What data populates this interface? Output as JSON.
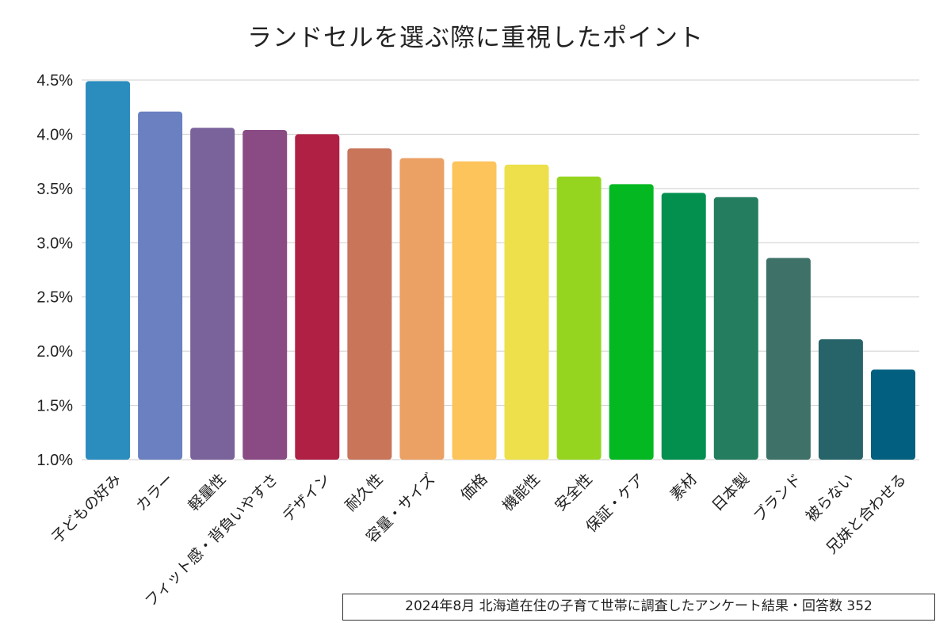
{
  "chart_data": {
    "type": "bar",
    "title": "ランドセルを選ぶ際に重視したポイント",
    "xlabel": "",
    "ylabel": "",
    "ylim": [
      1.0,
      4.5
    ],
    "yticks": [
      "1.0%",
      "1.5%",
      "2.0%",
      "2.5%",
      "3.0%",
      "3.5%",
      "4.0%",
      "4.5%"
    ],
    "ytick_values": [
      1.0,
      1.5,
      2.0,
      2.5,
      3.0,
      3.5,
      4.0,
      4.5
    ],
    "grid": true,
    "legend": "none",
    "categories": [
      "子どもの好み",
      "カラー",
      "軽量性",
      "フィット感・背負いやすさ",
      "デザイン",
      "耐久性",
      "容量・サイズ",
      "価格",
      "機能性",
      "安全性",
      "保証・ケア",
      "素材",
      "日本製",
      "ブランド",
      "被らない",
      "兄妹と合わせる"
    ],
    "values": [
      4.49,
      4.21,
      4.06,
      4.04,
      4.0,
      3.87,
      3.78,
      3.75,
      3.72,
      3.61,
      3.54,
      3.46,
      3.42,
      2.86,
      2.11,
      1.83
    ],
    "colors": [
      "#2b8cbe",
      "#6a80c0",
      "#7a629b",
      "#8a4b85",
      "#b02045",
      "#c8755a",
      "#eba064",
      "#fdc45c",
      "#ede04b",
      "#95d51f",
      "#04b821",
      "#03904f",
      "#237d5e",
      "#3e7168",
      "#266469",
      "#035f7f"
    ],
    "footnote": "2024年8月  北海道在住の子育て世帯に調査したアンケート結果・回答数 352"
  }
}
